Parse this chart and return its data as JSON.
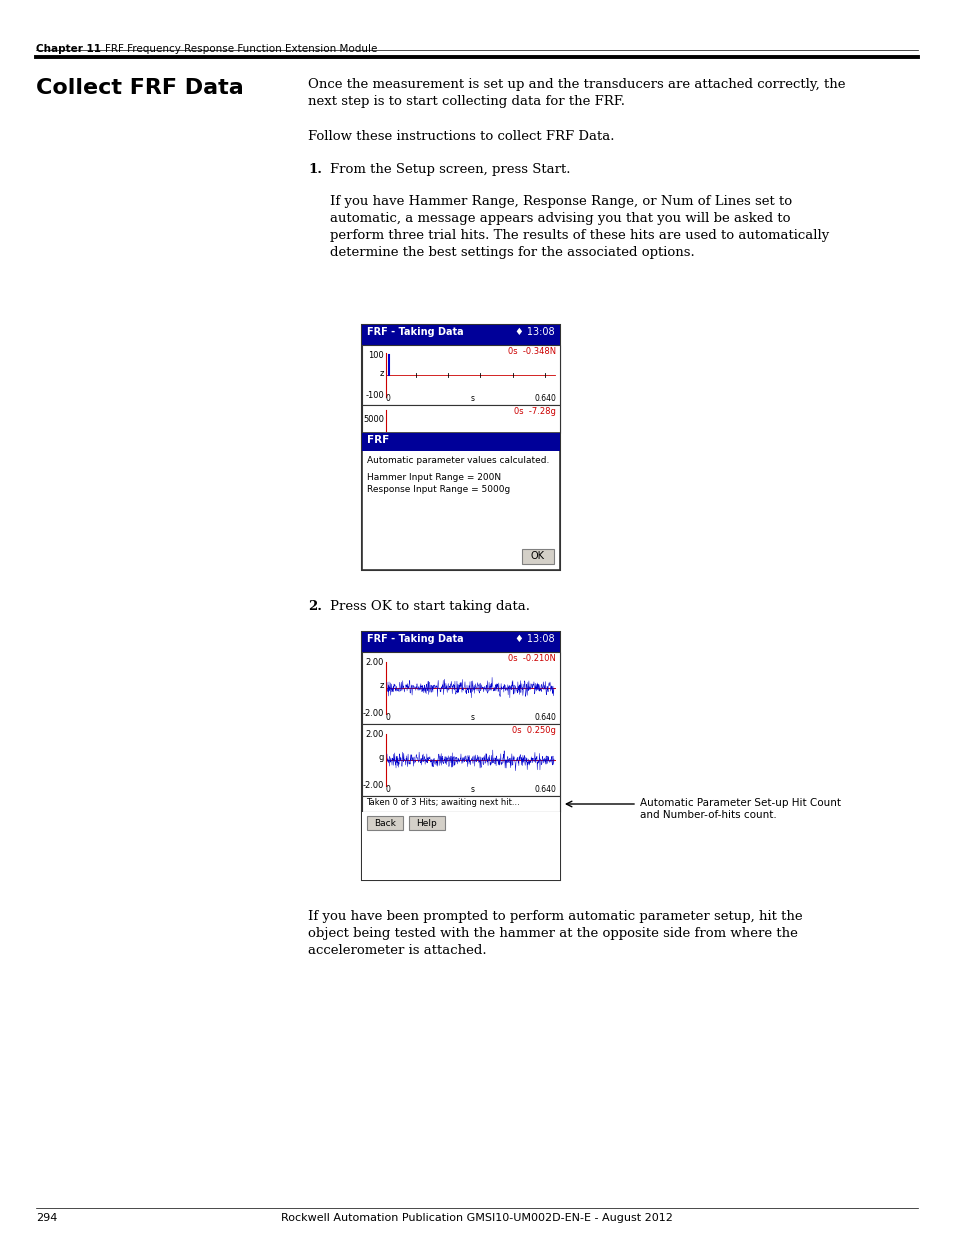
{
  "page_bg": "#ffffff",
  "header_chapter": "Chapter 11",
  "header_title": "FRF Frequency Response Function Extension Module",
  "footer_page": "294",
  "footer_center": "Rockwell Automation Publication GMSI10-UM002D-EN-E - August 2012",
  "section_title": "Collect FRF Data",
  "body_text1a": "Once the measurement is set up and the transducers are attached correctly, the",
  "body_text1b": "next step is to start collecting data for the FRF.",
  "body_text2": "Follow these instructions to collect FRF Data.",
  "step1_label": "1.",
  "step1_text": "From the Setup screen, press Start.",
  "step1_body_lines": [
    "If you have Hammer Range, Response Range, or Num of Lines set to",
    "automatic, a message appears advising you that you will be asked to",
    "perform three trial hits. The results of these hits are used to automatically",
    "determine the best settings for the associated options."
  ],
  "screen1_title": "FRF - Taking Data",
  "screen1_time": "♦ 13:08",
  "screen1_top_label": "0s  -0.348N",
  "screen1_ytop_max": "100",
  "screen1_ytop_z": "z",
  "screen1_ytop_min": "-100",
  "screen1_xbottom_0": "0",
  "screen1_xbottom_s": "s",
  "screen1_xbottom_max": "0.640",
  "screen1_bot_label": "0s  -7.28g",
  "screen1_ybot_val": "5000",
  "screen1_dialog_title": "FRF",
  "screen1_dialog_text1": "Automatic parameter values calculated.",
  "screen1_dialog_text2a": "Hammer Input Range = 200N",
  "screen1_dialog_text2b": "Response Input Range = 5000g",
  "screen1_ok_button": "OK",
  "step2_label": "2.",
  "step2_text": "Press OK to start taking data.",
  "screen2_title": "FRF - Taking Data",
  "screen2_time": "♦ 13:08",
  "screen2_top_label": "0s  -0.210N",
  "screen2_ytop_max": "2.00",
  "screen2_ytop_z": "z",
  "screen2_ytop_min": "-2.00",
  "screen2_xbottom_0": "0",
  "screen2_xbottom_s": "s",
  "screen2_xbottom_max": "0.640",
  "screen2_bot_label": "0s  0.250g",
  "screen2_ybot_max": "2.00",
  "screen2_ybot_g": "g",
  "screen2_ybot_min": "-2.00",
  "screen2_x2bottom_0": "0",
  "screen2_x2bottom_s": "s",
  "screen2_x2bottom_max": "0.640",
  "screen2_status": "Taken 0 of 3 Hits; awaiting next hit...",
  "screen2_back_btn": "Back",
  "screen2_help_btn": "Help",
  "screen2_ann_line1": "Automatic Parameter Set-up Hit Count",
  "screen2_ann_line2": "and Number-of-hits count.",
  "body_text3_lines": [
    "If you have been prompted to perform automatic parameter setup, hit the",
    "object being tested with the hammer at the opposite side from where the",
    "accelerometer is attached."
  ],
  "title_color": "#000000",
  "screen_header_bg": "#000099",
  "screen_bg": "#ffffff",
  "screen_border": "#333333",
  "screen_red_text": "#cc0000",
  "screen_blue_signal": "#0000cc",
  "screen_red_line": "#cc0000",
  "screen_dialog_title_bg": "#000099",
  "screen_btn_bg": "#d4d0c8",
  "screen_btn_border": "#808080"
}
